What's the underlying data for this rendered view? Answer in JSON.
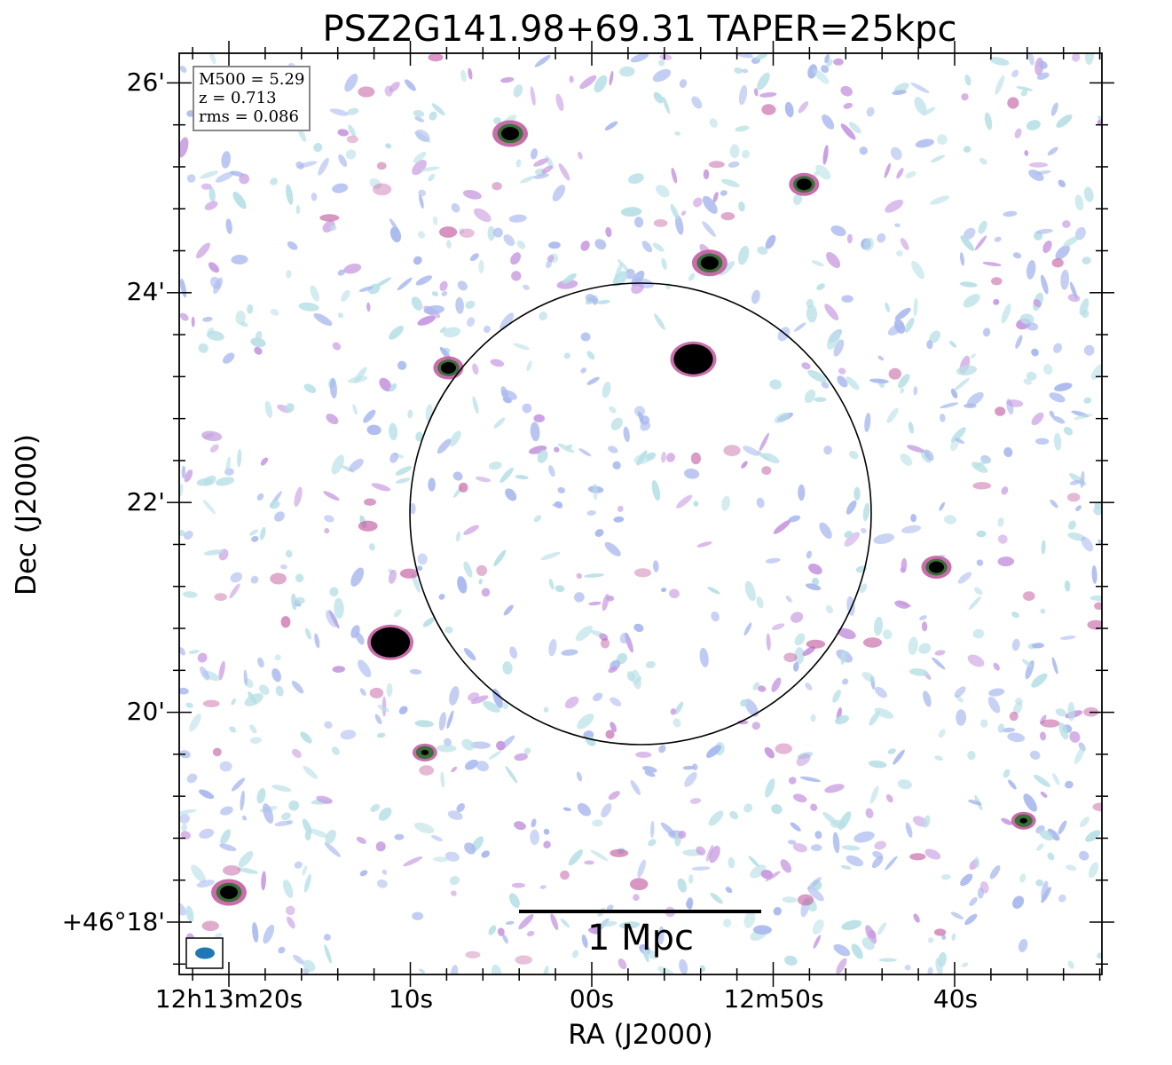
{
  "title": "PSZ2G141.98+69.31 TAPER=25kpc",
  "info_box": {
    "line1": "M500 = 5.29",
    "line2": "z = 0.713",
    "line3": "rms = 0.086"
  },
  "axes": {
    "xlabel": "RA (J2000)",
    "ylabel": "Dec (J2000)",
    "x_ticks": [
      "12h13m20s",
      "10s",
      "00s",
      "12m50s",
      "40s"
    ],
    "y_ticks": [
      "26'",
      "24'",
      "22'",
      "20'",
      "+46°18'"
    ]
  },
  "scale_bar": {
    "label": "1 Mpc"
  },
  "colors": {
    "noise_light": "#b8e0e6",
    "noise_blue": "#a8b8ee",
    "noise_purple": "#c79ae0",
    "source_magenta": "#c0559c",
    "source_green": "#3c6e3a",
    "source_core": "#000000",
    "beam": "#1f77b4"
  },
  "sources": [
    {
      "ra": "12h13m04.5s",
      "dec": "+46°25'31\"",
      "peak": "bright"
    },
    {
      "ra": "12h12m48.3s",
      "dec": "+46°25'02\"",
      "peak": "medium"
    },
    {
      "ra": "12h12m53.5s",
      "dec": "+46°24'17\"",
      "peak": "bright"
    },
    {
      "ra": "12h12m54.4s",
      "dec": "+46°23'22\"",
      "peak": "saturated"
    },
    {
      "ra": "12h13m07.9s",
      "dec": "+46°23'17\"",
      "peak": "medium"
    },
    {
      "ra": "12h13m11.1s",
      "dec": "+46°20'40\"",
      "peak": "saturated"
    },
    {
      "ra": "12h12m41.0s",
      "dec": "+46°21'23\"",
      "peak": "medium"
    },
    {
      "ra": "12h13m09.2s",
      "dec": "+46°19'37\"",
      "peak": "faint"
    },
    {
      "ra": "12h13m20.0s",
      "dec": "+46°18'17\"",
      "peak": "bright"
    },
    {
      "ra": "12h12m36.2s",
      "dec": "+46°18'58\"",
      "peak": "faint"
    }
  ]
}
